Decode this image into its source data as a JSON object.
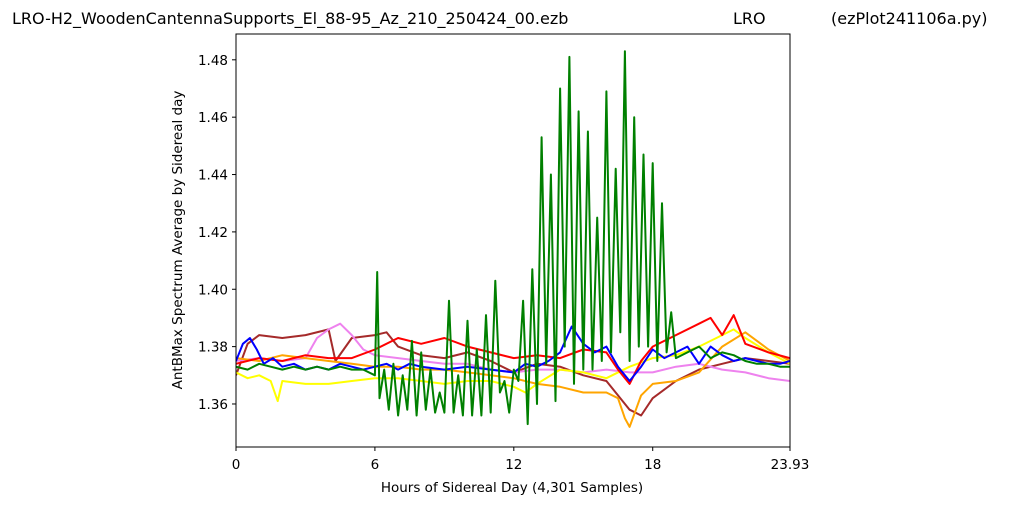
{
  "title": {
    "file": "LRO-H2_WoodenCantennaSupports_El_88-95_Az_210_250424_00.ezb",
    "site": "LRO",
    "program": "(ezPlot241106a.py)"
  },
  "chart_data": {
    "type": "line",
    "xlabel": "Hours of Sidereal Day  (4,301 Samples)",
    "ylabel": "AntBMax Spectrum Average by Sidereal day",
    "xlim": [
      0,
      23.93
    ],
    "ylim": [
      1.345,
      1.489
    ],
    "x_ticks": [
      0,
      6,
      12,
      18,
      23.93
    ],
    "x_tick_labels": [
      "0",
      "6",
      "12",
      "18",
      "23.93"
    ],
    "y_ticks": [
      1.36,
      1.38,
      1.4,
      1.42,
      1.44,
      1.46,
      1.48
    ],
    "y_tick_labels": [
      "1.36",
      "1.38",
      "1.40",
      "1.42",
      "1.44",
      "1.46",
      "1.48"
    ],
    "grid": false,
    "legend": "none",
    "series": [
      {
        "color": "#a52a2a",
        "x": [
          0,
          0.5,
          1,
          2,
          3,
          4,
          4.3,
          5,
          6,
          6.5,
          7,
          8,
          9,
          10,
          11,
          12,
          13,
          14,
          15,
          16,
          17,
          17.5,
          18,
          19,
          20,
          21,
          22,
          23,
          23.93
        ],
        "y": [
          1.37,
          1.381,
          1.384,
          1.383,
          1.384,
          1.386,
          1.375,
          1.383,
          1.384,
          1.385,
          1.38,
          1.377,
          1.376,
          1.378,
          1.375,
          1.371,
          1.374,
          1.373,
          1.37,
          1.368,
          1.358,
          1.356,
          1.362,
          1.368,
          1.372,
          1.374,
          1.376,
          1.375,
          1.374
        ]
      },
      {
        "color": "#ee82ee",
        "x": [
          0,
          1,
          2,
          3,
          3.5,
          4,
          4.5,
          5,
          5.5,
          6,
          7,
          8,
          9,
          10,
          11,
          12,
          13,
          14,
          15,
          16,
          17,
          18,
          19,
          20,
          21,
          22,
          23,
          23.93
        ],
        "y": [
          1.375,
          1.376,
          1.375,
          1.376,
          1.383,
          1.386,
          1.388,
          1.384,
          1.379,
          1.377,
          1.376,
          1.375,
          1.374,
          1.374,
          1.372,
          1.371,
          1.372,
          1.372,
          1.371,
          1.372,
          1.371,
          1.371,
          1.373,
          1.374,
          1.372,
          1.371,
          1.369,
          1.368
        ]
      },
      {
        "color": "#ffff00",
        "x": [
          0,
          0.5,
          1,
          1.5,
          1.8,
          2,
          3,
          4,
          5,
          6,
          7,
          8,
          9,
          10,
          11,
          12,
          12.5,
          13,
          14,
          15,
          16,
          17,
          18,
          19,
          20,
          21,
          21.5,
          22,
          23,
          23.93
        ],
        "y": [
          1.371,
          1.369,
          1.37,
          1.368,
          1.361,
          1.368,
          1.367,
          1.367,
          1.368,
          1.369,
          1.369,
          1.368,
          1.367,
          1.368,
          1.368,
          1.366,
          1.364,
          1.367,
          1.372,
          1.371,
          1.369,
          1.373,
          1.376,
          1.377,
          1.38,
          1.384,
          1.386,
          1.383,
          1.378,
          1.374
        ]
      },
      {
        "color": "#ffa500",
        "x": [
          0,
          1,
          2,
          3,
          4,
          5,
          6,
          7,
          8,
          9,
          10,
          11,
          12,
          13,
          14,
          15,
          16,
          16.5,
          16.8,
          17,
          17.5,
          18,
          19,
          20,
          21,
          22,
          23,
          23.93
        ],
        "y": [
          1.376,
          1.375,
          1.377,
          1.376,
          1.375,
          1.374,
          1.373,
          1.373,
          1.372,
          1.372,
          1.371,
          1.37,
          1.369,
          1.367,
          1.366,
          1.364,
          1.364,
          1.362,
          1.355,
          1.352,
          1.363,
          1.367,
          1.368,
          1.371,
          1.38,
          1.385,
          1.379,
          1.375
        ]
      },
      {
        "color": "#ff0000",
        "x": [
          0,
          1,
          2,
          3,
          4,
          5,
          6,
          7,
          8,
          9,
          10,
          11,
          12,
          13,
          14,
          15,
          16,
          16.5,
          17,
          17.5,
          18,
          19,
          20,
          20.5,
          21,
          21.5,
          22,
          23,
          23.93
        ],
        "y": [
          1.374,
          1.376,
          1.375,
          1.377,
          1.376,
          1.376,
          1.379,
          1.383,
          1.381,
          1.383,
          1.38,
          1.378,
          1.376,
          1.377,
          1.376,
          1.379,
          1.378,
          1.372,
          1.367,
          1.375,
          1.38,
          1.384,
          1.388,
          1.39,
          1.384,
          1.391,
          1.381,
          1.378,
          1.376
        ]
      },
      {
        "color": "#0000ff",
        "x": [
          0,
          0.3,
          0.6,
          0.9,
          1.2,
          1.6,
          2,
          2.5,
          3,
          3.5,
          4,
          4.5,
          5,
          5.5,
          6,
          6.5,
          7,
          7.5,
          8,
          9,
          10,
          11,
          12,
          12.5,
          13,
          13.5,
          14,
          14.5,
          15,
          15.5,
          16,
          16.5,
          17,
          17.5,
          18,
          18.5,
          19,
          19.5,
          20,
          20.5,
          21,
          21.5,
          22,
          22.5,
          23,
          23.5,
          23.93
        ],
        "y": [
          1.375,
          1.381,
          1.383,
          1.379,
          1.374,
          1.376,
          1.373,
          1.374,
          1.372,
          1.373,
          1.372,
          1.374,
          1.373,
          1.372,
          1.373,
          1.374,
          1.372,
          1.374,
          1.373,
          1.372,
          1.373,
          1.372,
          1.371,
          1.374,
          1.373,
          1.375,
          1.378,
          1.387,
          1.381,
          1.378,
          1.38,
          1.373,
          1.368,
          1.373,
          1.379,
          1.376,
          1.378,
          1.38,
          1.374,
          1.38,
          1.377,
          1.375,
          1.376,
          1.375,
          1.374,
          1.374,
          1.375
        ]
      },
      {
        "color": "#008000",
        "x": [
          0,
          0.5,
          1,
          1.5,
          2,
          2.5,
          3,
          3.5,
          4,
          4.5,
          5,
          5.5,
          6,
          6.1,
          6.2,
          6.4,
          6.6,
          6.8,
          7,
          7.2,
          7.4,
          7.6,
          7.8,
          8,
          8.2,
          8.4,
          8.6,
          8.8,
          9,
          9.2,
          9.4,
          9.6,
          9.8,
          10,
          10.2,
          10.4,
          10.6,
          10.8,
          11,
          11.2,
          11.4,
          11.6,
          11.8,
          12,
          12.2,
          12.4,
          12.6,
          12.8,
          13,
          13.2,
          13.4,
          13.6,
          13.8,
          14,
          14.2,
          14.4,
          14.6,
          14.8,
          15,
          15.2,
          15.4,
          15.6,
          15.8,
          16,
          16.2,
          16.4,
          16.6,
          16.8,
          17,
          17.2,
          17.4,
          17.6,
          17.8,
          18,
          18.2,
          18.4,
          18.6,
          18.8,
          19,
          19.5,
          20,
          20.5,
          21,
          21.5,
          22,
          22.5,
          23,
          23.5,
          23.93
        ],
        "y": [
          1.373,
          1.372,
          1.374,
          1.373,
          1.372,
          1.373,
          1.372,
          1.373,
          1.372,
          1.373,
          1.372,
          1.372,
          1.37,
          1.406,
          1.362,
          1.372,
          1.358,
          1.374,
          1.356,
          1.37,
          1.358,
          1.382,
          1.356,
          1.378,
          1.358,
          1.372,
          1.357,
          1.364,
          1.357,
          1.396,
          1.357,
          1.37,
          1.356,
          1.389,
          1.356,
          1.379,
          1.356,
          1.391,
          1.357,
          1.403,
          1.364,
          1.368,
          1.357,
          1.372,
          1.368,
          1.396,
          1.353,
          1.407,
          1.36,
          1.453,
          1.374,
          1.44,
          1.361,
          1.47,
          1.38,
          1.481,
          1.367,
          1.462,
          1.372,
          1.455,
          1.372,
          1.425,
          1.375,
          1.469,
          1.378,
          1.442,
          1.385,
          1.483,
          1.375,
          1.46,
          1.38,
          1.447,
          1.38,
          1.444,
          1.375,
          1.43,
          1.378,
          1.392,
          1.376,
          1.378,
          1.38,
          1.376,
          1.378,
          1.377,
          1.375,
          1.374,
          1.374,
          1.373,
          1.373
        ]
      }
    ]
  }
}
